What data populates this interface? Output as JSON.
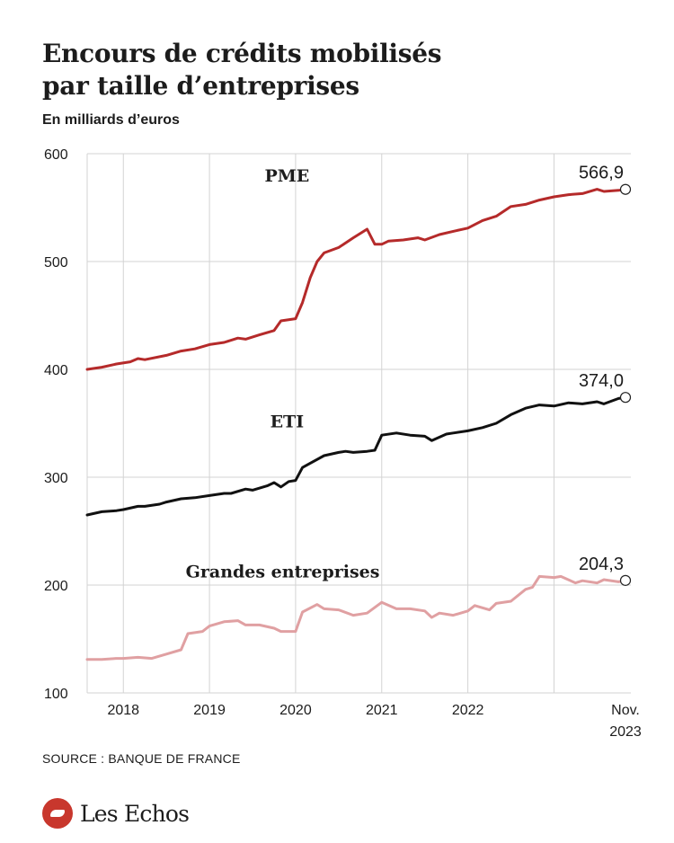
{
  "header": {
    "title_line1": "Encours de crédits mobilisés",
    "title_line2": "par taille d’entreprises",
    "subtitle": "En milliards d’euros"
  },
  "footer": {
    "source": "SOURCE : BANQUE DE FRANCE",
    "brand": "Les Echos",
    "brand_icon": "les-echos-logo-icon"
  },
  "colors": {
    "pme": "#b52a2a",
    "eti": "#111111",
    "grandes": "#e0a0a2",
    "grid": "#d3d3d3",
    "text": "#1c1c1c"
  },
  "chart_data": {
    "type": "line",
    "title": "Encours de crédits mobilisés par taille d’entreprises",
    "subtitle": "En milliards d’euros",
    "ylim": [
      100,
      600
    ],
    "yticks": [
      100,
      200,
      300,
      400,
      500,
      600
    ],
    "ytick_labels": [
      "100",
      "200",
      "300",
      "400",
      "500",
      "600"
    ],
    "xlim": [
      2017.58,
      2023.83
    ],
    "xtick_labels": [
      {
        "x": 2018.0,
        "label": "2018"
      },
      {
        "x": 2019.0,
        "label": "2019"
      },
      {
        "x": 2020.0,
        "label": "2020"
      },
      {
        "x": 2021.0,
        "label": "2021"
      },
      {
        "x": 2022.0,
        "label": "2022"
      },
      {
        "x": 2023.83,
        "label": "Nov.",
        "label2": "2023"
      }
    ],
    "x_grid": [
      2017.0,
      2018.0,
      2019.0,
      2020.0,
      2021.0,
      2022.0,
      2023.0
    ],
    "grid": true,
    "series": [
      {
        "name": "PME",
        "color_key": "pme",
        "end_label": "566,9",
        "label_pos": [
          2019.9,
          580
        ],
        "points": [
          [
            2017.58,
            400
          ],
          [
            2017.75,
            402
          ],
          [
            2017.92,
            405
          ],
          [
            2018.08,
            407
          ],
          [
            2018.17,
            410
          ],
          [
            2018.25,
            409
          ],
          [
            2018.5,
            413
          ],
          [
            2018.67,
            417
          ],
          [
            2018.83,
            419
          ],
          [
            2019.0,
            423
          ],
          [
            2019.17,
            425
          ],
          [
            2019.33,
            429
          ],
          [
            2019.42,
            428
          ],
          [
            2019.58,
            432
          ],
          [
            2019.75,
            436
          ],
          [
            2019.83,
            445
          ],
          [
            2020.0,
            447
          ],
          [
            2020.08,
            462
          ],
          [
            2020.17,
            485
          ],
          [
            2020.25,
            500
          ],
          [
            2020.33,
            508
          ],
          [
            2020.5,
            513
          ],
          [
            2020.67,
            522
          ],
          [
            2020.83,
            530
          ],
          [
            2020.92,
            516
          ],
          [
            2021.0,
            516
          ],
          [
            2021.08,
            519
          ],
          [
            2021.25,
            520
          ],
          [
            2021.42,
            522
          ],
          [
            2021.5,
            520
          ],
          [
            2021.67,
            525
          ],
          [
            2021.83,
            528
          ],
          [
            2022.0,
            531
          ],
          [
            2022.17,
            538
          ],
          [
            2022.33,
            542
          ],
          [
            2022.5,
            551
          ],
          [
            2022.67,
            553
          ],
          [
            2022.83,
            557
          ],
          [
            2023.0,
            560
          ],
          [
            2023.17,
            562
          ],
          [
            2023.33,
            563
          ],
          [
            2023.5,
            567
          ],
          [
            2023.58,
            565
          ],
          [
            2023.75,
            566
          ],
          [
            2023.83,
            566.9
          ]
        ]
      },
      {
        "name": "ETI",
        "color_key": "eti",
        "end_label": "374,0",
        "label_pos": [
          2019.9,
          352
        ],
        "points": [
          [
            2017.58,
            265
          ],
          [
            2017.75,
            268
          ],
          [
            2017.92,
            269
          ],
          [
            2018.0,
            270
          ],
          [
            2018.17,
            273
          ],
          [
            2018.25,
            273
          ],
          [
            2018.42,
            275
          ],
          [
            2018.5,
            277
          ],
          [
            2018.67,
            280
          ],
          [
            2018.83,
            281
          ],
          [
            2019.0,
            283
          ],
          [
            2019.17,
            285
          ],
          [
            2019.25,
            285
          ],
          [
            2019.42,
            289
          ],
          [
            2019.5,
            288
          ],
          [
            2019.67,
            292
          ],
          [
            2019.75,
            295
          ],
          [
            2019.83,
            291
          ],
          [
            2019.92,
            296
          ],
          [
            2020.0,
            297
          ],
          [
            2020.08,
            309
          ],
          [
            2020.17,
            313
          ],
          [
            2020.33,
            320
          ],
          [
            2020.5,
            323
          ],
          [
            2020.58,
            324
          ],
          [
            2020.67,
            323
          ],
          [
            2020.83,
            324
          ],
          [
            2020.92,
            325
          ],
          [
            2021.0,
            339
          ],
          [
            2021.17,
            341
          ],
          [
            2021.33,
            339
          ],
          [
            2021.5,
            338
          ],
          [
            2021.58,
            334
          ],
          [
            2021.75,
            340
          ],
          [
            2021.83,
            341
          ],
          [
            2022.0,
            343
          ],
          [
            2022.17,
            346
          ],
          [
            2022.33,
            350
          ],
          [
            2022.5,
            358
          ],
          [
            2022.67,
            364
          ],
          [
            2022.83,
            367
          ],
          [
            2023.0,
            366
          ],
          [
            2023.17,
            369
          ],
          [
            2023.33,
            368
          ],
          [
            2023.5,
            370
          ],
          [
            2023.58,
            368
          ],
          [
            2023.75,
            373
          ],
          [
            2023.83,
            374.0
          ]
        ]
      },
      {
        "name": "Grandes entreprises",
        "color_key": "grandes",
        "end_label": "204,3",
        "label_pos": [
          2019.85,
          213
        ],
        "points": [
          [
            2017.58,
            131
          ],
          [
            2017.75,
            131
          ],
          [
            2017.92,
            132
          ],
          [
            2018.0,
            132
          ],
          [
            2018.17,
            133
          ],
          [
            2018.33,
            132
          ],
          [
            2018.5,
            136
          ],
          [
            2018.67,
            140
          ],
          [
            2018.75,
            155
          ],
          [
            2018.92,
            157
          ],
          [
            2019.0,
            162
          ],
          [
            2019.17,
            166
          ],
          [
            2019.33,
            167
          ],
          [
            2019.42,
            163
          ],
          [
            2019.58,
            163
          ],
          [
            2019.75,
            160
          ],
          [
            2019.83,
            157
          ],
          [
            2020.0,
            157
          ],
          [
            2020.08,
            175
          ],
          [
            2020.25,
            182
          ],
          [
            2020.33,
            178
          ],
          [
            2020.5,
            177
          ],
          [
            2020.67,
            172
          ],
          [
            2020.83,
            174
          ],
          [
            2021.0,
            184
          ],
          [
            2021.17,
            178
          ],
          [
            2021.33,
            178
          ],
          [
            2021.5,
            176
          ],
          [
            2021.58,
            170
          ],
          [
            2021.67,
            174
          ],
          [
            2021.83,
            172
          ],
          [
            2022.0,
            176
          ],
          [
            2022.08,
            181
          ],
          [
            2022.25,
            177
          ],
          [
            2022.33,
            183
          ],
          [
            2022.5,
            185
          ],
          [
            2022.67,
            196
          ],
          [
            2022.75,
            198
          ],
          [
            2022.83,
            208
          ],
          [
            2023.0,
            207
          ],
          [
            2023.08,
            208
          ],
          [
            2023.25,
            202
          ],
          [
            2023.33,
            204
          ],
          [
            2023.5,
            202
          ],
          [
            2023.58,
            205
          ],
          [
            2023.75,
            203
          ],
          [
            2023.83,
            204.3
          ]
        ]
      }
    ]
  }
}
